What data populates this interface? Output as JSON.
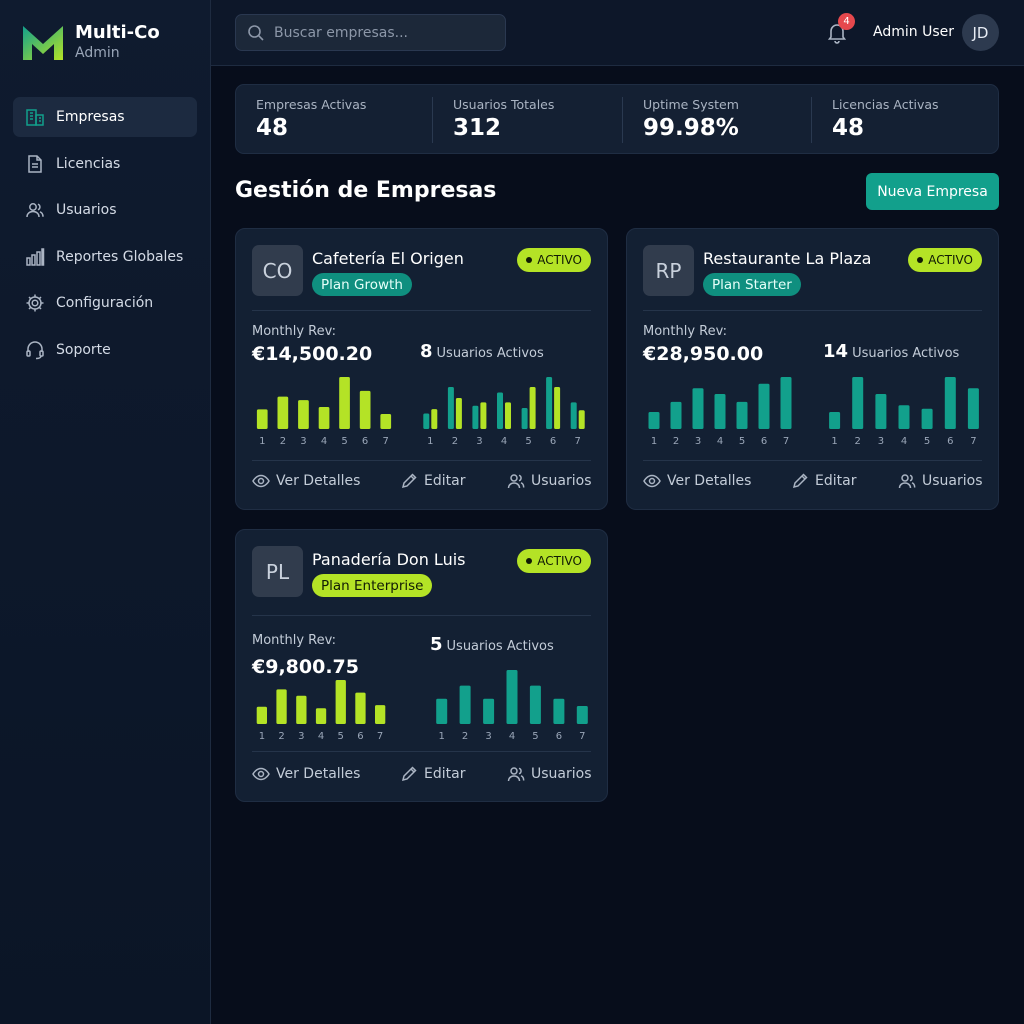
{
  "brand": {
    "name": "Multi-Co",
    "subtitle": "Admin"
  },
  "nav": [
    {
      "label": "Empresas",
      "icon": "building-icon",
      "active": true
    },
    {
      "label": "Licencias",
      "icon": "document-icon",
      "active": false
    },
    {
      "label": "Usuarios",
      "icon": "users-icon",
      "active": false
    },
    {
      "label": "Reportes Globales",
      "icon": "bar-chart-icon",
      "active": false
    },
    {
      "label": "Configuración",
      "icon": "gear-icon",
      "active": false
    },
    {
      "label": "Soporte",
      "icon": "headset-icon",
      "active": false
    }
  ],
  "topbar": {
    "search_placeholder": "Buscar empresas...",
    "notifications_count": "4",
    "user_name": "Admin User",
    "user_initials": "JD"
  },
  "stats": [
    {
      "label": "Empresas Activas",
      "value": "48"
    },
    {
      "label": "Usuarios Totales",
      "value": "312"
    },
    {
      "label": "Uptime System",
      "value": "99.98%"
    },
    {
      "label": "Licencias Activas",
      "value": "48"
    }
  ],
  "section": {
    "title": "Gestión de Empresas",
    "new_button": "Nueva Empresa"
  },
  "colors": {
    "lime": "#b4e326",
    "teal": "#12a08c",
    "accent_teal_bar": "#0f9a86"
  },
  "cards": [
    {
      "initials": "CO",
      "name": "Cafetería El Origen",
      "plan": "Plan Growth",
      "plan_style": "teal",
      "status": "ACTIVO",
      "rev_label": "Monthly Rev:",
      "rev_value": "€14,500.20",
      "users_count": "8",
      "users_label": "Usuarios Activos",
      "actions": {
        "details": "Ver Detalles",
        "edit": "Editar",
        "users": "Usuarios"
      },
      "chart_data": [
        {
          "type": "bar",
          "categories": [
            "1",
            "2",
            "3",
            "4",
            "5",
            "6",
            "7"
          ],
          "series": [
            {
              "color": "#b4e326",
              "values": [
                17,
                28,
                25,
                19,
                45,
                33,
                13
              ]
            }
          ]
        },
        {
          "type": "bar",
          "categories": [
            "1",
            "2",
            "3",
            "4",
            "5",
            "6",
            "7"
          ],
          "series": [
            {
              "color": "#12a08c",
              "values": [
                14,
                38,
                21,
                33,
                19,
                47,
                24
              ]
            },
            {
              "color": "#b4e326",
              "values": [
                18,
                28,
                24,
                24,
                38,
                38,
                17
              ]
            }
          ]
        }
      ]
    },
    {
      "initials": "RP",
      "name": "Restaurante La Plaza",
      "plan": "Plan Starter",
      "plan_style": "teal",
      "status": "ACTIVO",
      "rev_label": "Monthly Rev:",
      "rev_value": "€28,950.00",
      "users_count": "14",
      "users_label": "Usuarios Activos",
      "actions": {
        "details": "Ver Detalles",
        "edit": "Editar",
        "users": "Usuarios"
      },
      "chart_data": [
        {
          "type": "bar",
          "categories": [
            "1",
            "2",
            "3",
            "4",
            "5",
            "6",
            "7"
          ],
          "series": [
            {
              "color": "#12a08c",
              "values": [
                15,
                24,
                36,
                31,
                24,
                40,
                46
              ]
            }
          ]
        },
        {
          "type": "bar",
          "categories": [
            "1",
            "2",
            "3",
            "4",
            "5",
            "6",
            "7"
          ],
          "series": [
            {
              "color": "#12a08c",
              "values": [
                15,
                46,
                31,
                21,
                18,
                46,
                36
              ]
            }
          ]
        }
      ]
    },
    {
      "initials": "PL",
      "name": "Panadería Don Luis",
      "plan": "Plan Enterprise",
      "plan_style": "lime",
      "status": "ACTIVO",
      "rev_label": "Monthly Rev:",
      "rev_value": "€9,800.75",
      "users_count": "5",
      "users_label": "Usuarios Activos",
      "actions": {
        "details": "Ver Detalles",
        "edit": "Editar",
        "users": "Usuarios"
      },
      "chart_data": [
        {
          "type": "bar",
          "categories": [
            "1",
            "2",
            "3",
            "4",
            "5",
            "6",
            "7"
          ],
          "series": [
            {
              "color": "#b4e326",
              "values": [
                11,
                22,
                18,
                10,
                28,
                20,
                12
              ]
            }
          ]
        },
        {
          "type": "bar",
          "categories": [
            "1",
            "2",
            "3",
            "4",
            "5",
            "6",
            "7"
          ],
          "series": [
            {
              "color": "#12a08c",
              "values": [
                21,
                32,
                21,
                45,
                32,
                21,
                15
              ]
            }
          ]
        }
      ]
    }
  ]
}
